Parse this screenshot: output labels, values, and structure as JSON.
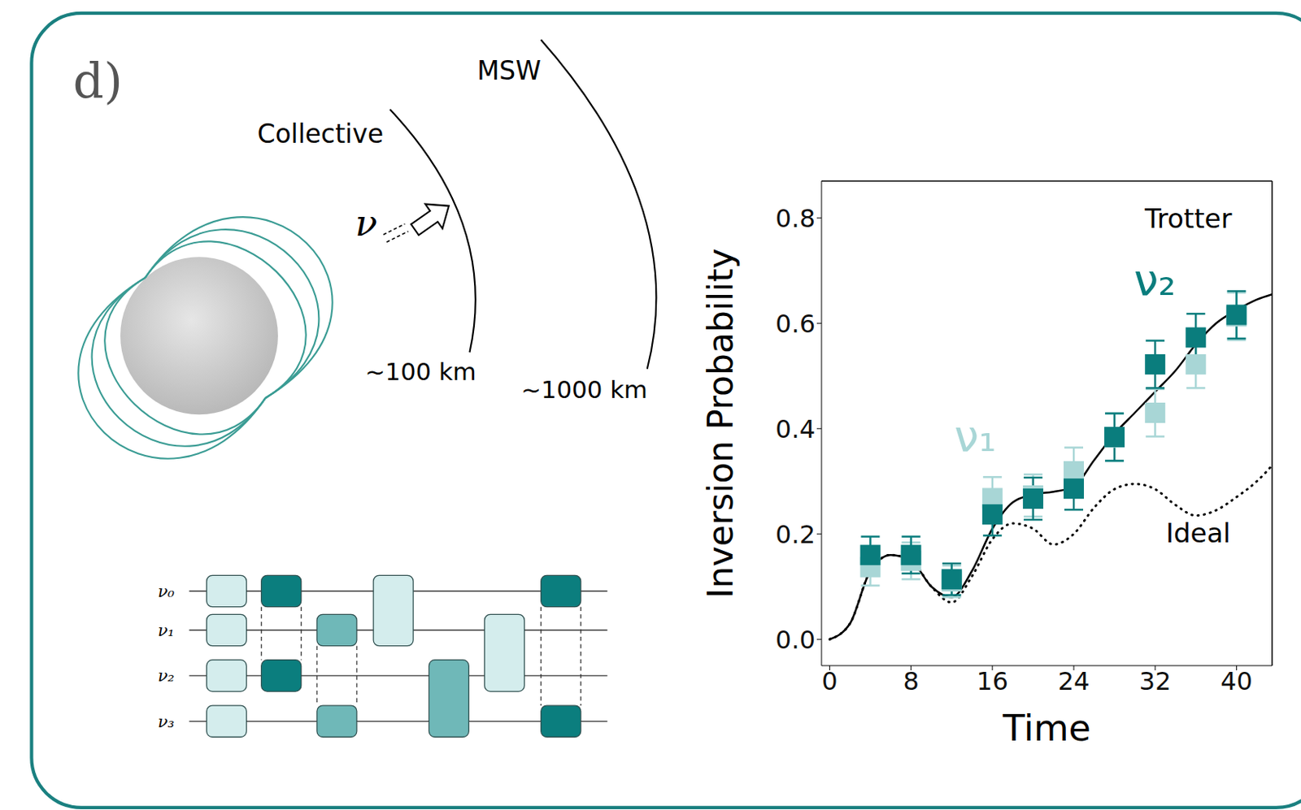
{
  "panel_label": "d)",
  "diagram": {
    "regions": [
      {
        "label": "Collective",
        "distance": "~100 km"
      },
      {
        "label": "MSW",
        "distance": "~1000 km"
      }
    ],
    "particle": "ν",
    "circuit": {
      "qubits": [
        "ν₀",
        "ν₁",
        "ν₂",
        "ν₃"
      ]
    }
  },
  "chart_data": {
    "type": "scatter",
    "x_label": "Time",
    "y_label": "Inversion Probability",
    "xlim": [
      -0.8,
      43.5
    ],
    "xticks": [
      0,
      8,
      16,
      24,
      32,
      40
    ],
    "ylim": [
      -0.05,
      0.87
    ],
    "yticks": [
      {
        "value": 0,
        "label": "0.0"
      },
      {
        "value": 0.2,
        "label": "0.2"
      },
      {
        "value": 0.4,
        "label": "0.4"
      },
      {
        "value": 0.6,
        "label": "0.6"
      },
      {
        "value": 0.8,
        "label": "0.8"
      }
    ],
    "series": [
      {
        "name": "Trotter",
        "type": "line",
        "color": "#000000",
        "line_style": "solid",
        "x": [
          0,
          2,
          4,
          6,
          8,
          10,
          12,
          14,
          16,
          18,
          20,
          22,
          24,
          26,
          28,
          30,
          32,
          34,
          36,
          38,
          40,
          42,
          43.5
        ],
        "values": [
          0,
          0.03,
          0.13,
          0.16,
          0.15,
          0.1,
          0.08,
          0.13,
          0.21,
          0.26,
          0.275,
          0.28,
          0.29,
          0.34,
          0.39,
          0.43,
          0.47,
          0.51,
          0.56,
          0.6,
          0.625,
          0.645,
          0.655
        ]
      },
      {
        "name": "Ideal",
        "type": "line",
        "color": "#000000",
        "line_style": "dotted",
        "x": [
          0,
          2,
          4,
          6,
          8,
          10,
          12,
          14,
          16,
          18,
          20,
          22,
          24,
          26,
          28,
          30,
          32,
          34,
          36,
          38,
          40,
          42,
          43.5
        ],
        "values": [
          0,
          0.03,
          0.13,
          0.16,
          0.15,
          0.1,
          0.07,
          0.12,
          0.19,
          0.22,
          0.21,
          0.18,
          0.2,
          0.25,
          0.285,
          0.295,
          0.285,
          0.255,
          0.235,
          0.245,
          0.27,
          0.3,
          0.33
        ]
      },
      {
        "name": "ν₁",
        "type": "scatter",
        "color": "#a8d6d6",
        "marker": "square",
        "x": [
          4,
          8,
          12,
          16,
          20,
          24,
          28,
          32,
          36,
          40
        ],
        "values": [
          0.137,
          0.149,
          0.11,
          0.268,
          0.273,
          0.319,
          0.383,
          0.43,
          0.522,
          0.613
        ],
        "errors": [
          0.035,
          0.035,
          0.03,
          0.04,
          0.04,
          0.045,
          0.045,
          0.045,
          0.045,
          0.045
        ]
      },
      {
        "name": "ν₂",
        "type": "scatter",
        "color": "#0a7d7d",
        "marker": "square",
        "x": [
          4,
          8,
          12,
          16,
          20,
          24,
          28,
          32,
          36,
          40
        ],
        "values": [
          0.16,
          0.16,
          0.114,
          0.237,
          0.267,
          0.286,
          0.384,
          0.522,
          0.573,
          0.616
        ],
        "errors": [
          0.035,
          0.035,
          0.03,
          0.04,
          0.04,
          0.04,
          0.045,
          0.045,
          0.045,
          0.045
        ]
      }
    ]
  }
}
